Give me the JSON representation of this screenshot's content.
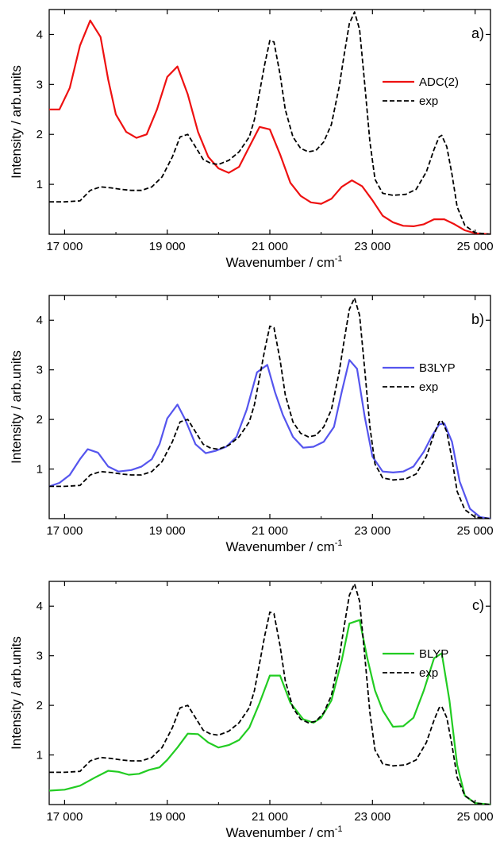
{
  "chart_data": [
    {
      "type": "line",
      "panel_label": "a)",
      "xlabel_main": "Wavenumber / cm",
      "xlabel_sup": "-1",
      "ylabel": "Intensity / arb.units",
      "xlim": [
        16700,
        25300
      ],
      "ylim": [
        0,
        4.5
      ],
      "xticks": [
        17000,
        19000,
        21000,
        23000,
        25000
      ],
      "xtick_labels": [
        "17 000",
        "19 000",
        "21 000",
        "23 000",
        "25 000"
      ],
      "yticks": [
        1,
        2,
        3,
        4
      ],
      "ytick_labels": [
        "1",
        "2",
        "3",
        "4"
      ],
      "legend_position": "right",
      "series": [
        {
          "name": "ADC(2)",
          "color": "#ee1111",
          "style": "solid",
          "x": [
            16700,
            16900,
            17100,
            17300,
            17500,
            17700,
            17850,
            18000,
            18200,
            18400,
            18600,
            18800,
            19000,
            19200,
            19400,
            19600,
            19800,
            20000,
            20200,
            20400,
            20600,
            20800,
            21000,
            21200,
            21400,
            21600,
            21800,
            22000,
            22200,
            22400,
            22600,
            22800,
            23000,
            23200,
            23400,
            23600,
            23800,
            24000,
            24200,
            24400,
            24600,
            24800,
            25000,
            25300
          ],
          "y": [
            2.5,
            2.5,
            2.93,
            3.78,
            4.28,
            3.95,
            3.1,
            2.4,
            2.05,
            1.93,
            2.0,
            2.5,
            3.15,
            3.36,
            2.8,
            2.05,
            1.55,
            1.32,
            1.23,
            1.35,
            1.75,
            2.15,
            2.1,
            1.6,
            1.03,
            0.77,
            0.64,
            0.61,
            0.71,
            0.95,
            1.08,
            0.96,
            0.68,
            0.37,
            0.24,
            0.17,
            0.16,
            0.2,
            0.3,
            0.3,
            0.2,
            0.08,
            0.02,
            0.0
          ]
        },
        {
          "name": "exp",
          "color": "#000000",
          "style": "dashed",
          "x": [
            16700,
            17000,
            17300,
            17500,
            17700,
            17900,
            18100,
            18300,
            18500,
            18700,
            18900,
            19100,
            19250,
            19400,
            19550,
            19700,
            19850,
            20000,
            20200,
            20400,
            20600,
            20700,
            20800,
            20900,
            21000,
            21080,
            21200,
            21300,
            21450,
            21600,
            21750,
            21900,
            22050,
            22200,
            22350,
            22450,
            22550,
            22650,
            22750,
            22850,
            22950,
            23050,
            23200,
            23400,
            23650,
            23850,
            24050,
            24200,
            24300,
            24350,
            24450,
            24550,
            24650,
            24800,
            25000,
            25300
          ],
          "y": [
            0.65,
            0.65,
            0.67,
            0.88,
            0.95,
            0.93,
            0.9,
            0.88,
            0.88,
            0.95,
            1.15,
            1.55,
            1.95,
            2.0,
            1.75,
            1.5,
            1.42,
            1.4,
            1.48,
            1.65,
            1.95,
            2.3,
            2.85,
            3.4,
            3.88,
            3.85,
            3.2,
            2.5,
            1.95,
            1.72,
            1.65,
            1.68,
            1.85,
            2.2,
            2.95,
            3.6,
            4.22,
            4.45,
            4.1,
            3.0,
            1.85,
            1.1,
            0.82,
            0.78,
            0.8,
            0.9,
            1.25,
            1.7,
            1.95,
            1.98,
            1.75,
            1.2,
            0.55,
            0.18,
            0.03,
            0.0
          ]
        }
      ]
    },
    {
      "type": "line",
      "panel_label": "b)",
      "xlabel_main": "Wavenumber / cm",
      "xlabel_sup": "-1",
      "ylabel": "Intensity / arb.units",
      "xlim": [
        16700,
        25300
      ],
      "ylim": [
        0,
        4.5
      ],
      "xticks": [
        17000,
        19000,
        21000,
        23000,
        25000
      ],
      "xtick_labels": [
        "17 000",
        "19 000",
        "21 000",
        "23 000",
        "25 000"
      ],
      "yticks": [
        1,
        2,
        3,
        4
      ],
      "ytick_labels": [
        "1",
        "2",
        "3",
        "4"
      ],
      "legend_position": "right",
      "series": [
        {
          "name": "B3LYP",
          "color": "#5555ee",
          "style": "solid",
          "x": [
            16700,
            16900,
            17100,
            17300,
            17450,
            17650,
            17850,
            18050,
            18300,
            18500,
            18700,
            18850,
            19000,
            19200,
            19350,
            19550,
            19750,
            19950,
            20150,
            20350,
            20550,
            20750,
            20950,
            21100,
            21250,
            21450,
            21650,
            21850,
            22050,
            22250,
            22400,
            22550,
            22700,
            22850,
            23000,
            23200,
            23400,
            23600,
            23800,
            24000,
            24150,
            24300,
            24400,
            24550,
            24700,
            24900,
            25100,
            25300
          ],
          "y": [
            0.65,
            0.72,
            0.88,
            1.2,
            1.4,
            1.33,
            1.05,
            0.95,
            0.98,
            1.05,
            1.2,
            1.5,
            2.02,
            2.3,
            2.0,
            1.5,
            1.32,
            1.37,
            1.45,
            1.65,
            2.2,
            2.95,
            3.1,
            2.55,
            2.1,
            1.65,
            1.43,
            1.45,
            1.55,
            1.85,
            2.55,
            3.2,
            3.02,
            2.05,
            1.25,
            0.95,
            0.93,
            0.95,
            1.05,
            1.35,
            1.65,
            1.9,
            1.92,
            1.55,
            0.75,
            0.2,
            0.03,
            0.0
          ]
        },
        {
          "name": "exp",
          "color": "#000000",
          "style": "dashed",
          "x": [
            16700,
            17000,
            17300,
            17500,
            17700,
            17900,
            18100,
            18300,
            18500,
            18700,
            18900,
            19100,
            19250,
            19400,
            19550,
            19700,
            19850,
            20000,
            20200,
            20400,
            20600,
            20700,
            20800,
            20900,
            21000,
            21080,
            21200,
            21300,
            21450,
            21600,
            21750,
            21900,
            22050,
            22200,
            22350,
            22450,
            22550,
            22650,
            22750,
            22850,
            22950,
            23050,
            23200,
            23400,
            23650,
            23850,
            24050,
            24200,
            24300,
            24350,
            24450,
            24550,
            24650,
            24800,
            25000,
            25300
          ],
          "y": [
            0.65,
            0.65,
            0.67,
            0.88,
            0.95,
            0.93,
            0.9,
            0.88,
            0.88,
            0.95,
            1.15,
            1.55,
            1.95,
            2.0,
            1.75,
            1.5,
            1.42,
            1.4,
            1.48,
            1.65,
            1.95,
            2.3,
            2.85,
            3.4,
            3.88,
            3.85,
            3.2,
            2.5,
            1.95,
            1.72,
            1.65,
            1.68,
            1.85,
            2.2,
            2.95,
            3.6,
            4.22,
            4.45,
            4.1,
            3.0,
            1.85,
            1.1,
            0.82,
            0.78,
            0.8,
            0.9,
            1.25,
            1.7,
            1.95,
            1.98,
            1.75,
            1.2,
            0.55,
            0.18,
            0.03,
            0.0
          ]
        }
      ]
    },
    {
      "type": "line",
      "panel_label": "c)",
      "xlabel_main": "Wavenumber / cm",
      "xlabel_sup": "-1",
      "ylabel": "Intensity / arb.units",
      "xlim": [
        16700,
        25300
      ],
      "ylim": [
        0,
        4.5
      ],
      "xticks": [
        17000,
        19000,
        21000,
        23000,
        25000
      ],
      "xtick_labels": [
        "17 000",
        "19 000",
        "21 000",
        "23 000",
        "25 000"
      ],
      "yticks": [
        1,
        2,
        3,
        4
      ],
      "ytick_labels": [
        "1",
        "2",
        "3",
        "4"
      ],
      "legend_position": "right",
      "series": [
        {
          "name": "BLYP",
          "color": "#22cc22",
          "style": "solid",
          "x": [
            16700,
            17000,
            17300,
            17600,
            17850,
            18050,
            18250,
            18450,
            18650,
            18850,
            19000,
            19200,
            19400,
            19600,
            19800,
            20000,
            20200,
            20400,
            20600,
            20800,
            21000,
            21200,
            21400,
            21650,
            21850,
            22000,
            22200,
            22400,
            22550,
            22750,
            22900,
            23050,
            23200,
            23400,
            23600,
            23800,
            24000,
            24200,
            24350,
            24500,
            24650,
            24800,
            25000,
            25300
          ],
          "y": [
            0.28,
            0.3,
            0.38,
            0.55,
            0.68,
            0.66,
            0.6,
            0.62,
            0.7,
            0.75,
            0.9,
            1.15,
            1.43,
            1.42,
            1.25,
            1.15,
            1.2,
            1.3,
            1.55,
            2.05,
            2.6,
            2.6,
            2.05,
            1.72,
            1.65,
            1.75,
            2.1,
            2.9,
            3.65,
            3.72,
            2.95,
            2.3,
            1.9,
            1.57,
            1.58,
            1.75,
            2.3,
            2.95,
            3.05,
            2.1,
            0.8,
            0.18,
            0.03,
            0.0
          ]
        },
        {
          "name": "exp",
          "color": "#000000",
          "style": "dashed",
          "x": [
            16700,
            17000,
            17300,
            17500,
            17700,
            17900,
            18100,
            18300,
            18500,
            18700,
            18900,
            19100,
            19250,
            19400,
            19550,
            19700,
            19850,
            20000,
            20200,
            20400,
            20600,
            20700,
            20800,
            20900,
            21000,
            21080,
            21200,
            21300,
            21450,
            21600,
            21750,
            21900,
            22050,
            22200,
            22350,
            22450,
            22550,
            22650,
            22750,
            22850,
            22950,
            23050,
            23200,
            23400,
            23650,
            23850,
            24050,
            24200,
            24300,
            24350,
            24450,
            24550,
            24650,
            24800,
            25000,
            25300
          ],
          "y": [
            0.65,
            0.65,
            0.67,
            0.88,
            0.95,
            0.93,
            0.9,
            0.88,
            0.88,
            0.95,
            1.15,
            1.55,
            1.95,
            2.0,
            1.75,
            1.5,
            1.42,
            1.4,
            1.48,
            1.65,
            1.95,
            2.3,
            2.85,
            3.4,
            3.88,
            3.85,
            3.2,
            2.5,
            1.95,
            1.72,
            1.65,
            1.68,
            1.85,
            2.2,
            2.95,
            3.6,
            4.22,
            4.45,
            4.1,
            3.0,
            1.85,
            1.1,
            0.82,
            0.78,
            0.8,
            0.9,
            1.25,
            1.7,
            1.95,
            1.98,
            1.75,
            1.2,
            0.55,
            0.18,
            0.03,
            0.0
          ]
        }
      ]
    }
  ]
}
